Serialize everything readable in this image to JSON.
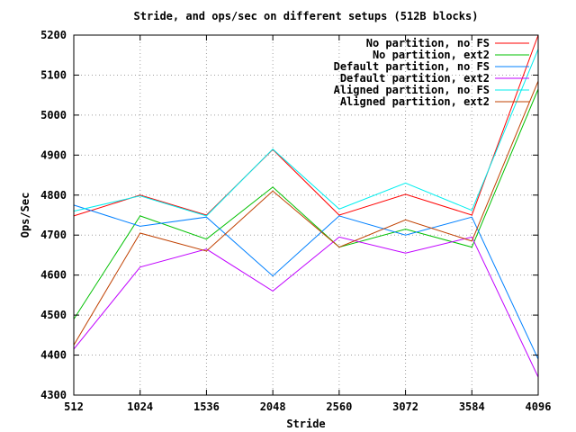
{
  "chart_data": {
    "type": "line",
    "title": "Stride, and ops/sec on different setups (512B blocks)",
    "xlabel": "Stride",
    "ylabel": "Ops/Sec",
    "x": [
      512,
      1024,
      1536,
      2048,
      2560,
      3072,
      3584,
      4096
    ],
    "xlim": [
      512,
      4096
    ],
    "ylim": [
      4300,
      5200
    ],
    "xticks": [
      512,
      1024,
      1536,
      2048,
      2560,
      3072,
      3584,
      4096
    ],
    "yticks": [
      4300,
      4400,
      4500,
      4600,
      4700,
      4800,
      4900,
      5000,
      5100,
      5200
    ],
    "grid": true,
    "legend_position": "top-right",
    "series": [
      {
        "name": "No partition, no FS",
        "color": "#ff0000",
        "values": [
          4748,
          4800,
          4750,
          4914,
          4750,
          4802,
          4750,
          5200
        ]
      },
      {
        "name": "No partition, ext2",
        "color": "#00c000",
        "values": [
          4490,
          4748,
          4690,
          4820,
          4670,
          4715,
          4670,
          5065
        ]
      },
      {
        "name": "Default partition, no FS",
        "color": "#0080ff",
        "values": [
          4775,
          4722,
          4745,
          4598,
          4748,
          4700,
          4745,
          4390
        ]
      },
      {
        "name": "Default partition, ext2",
        "color": "#c000ff",
        "values": [
          4415,
          4620,
          4665,
          4560,
          4695,
          4655,
          4695,
          4345
        ]
      },
      {
        "name": "Aligned partition, no FS",
        "color": "#00eeee",
        "values": [
          4760,
          4798,
          4748,
          4915,
          4765,
          4830,
          4762,
          5165
        ]
      },
      {
        "name": "Aligned partition, ext2",
        "color": "#c04000",
        "values": [
          4425,
          4705,
          4660,
          4810,
          4670,
          4738,
          4685,
          5085
        ]
      }
    ]
  }
}
